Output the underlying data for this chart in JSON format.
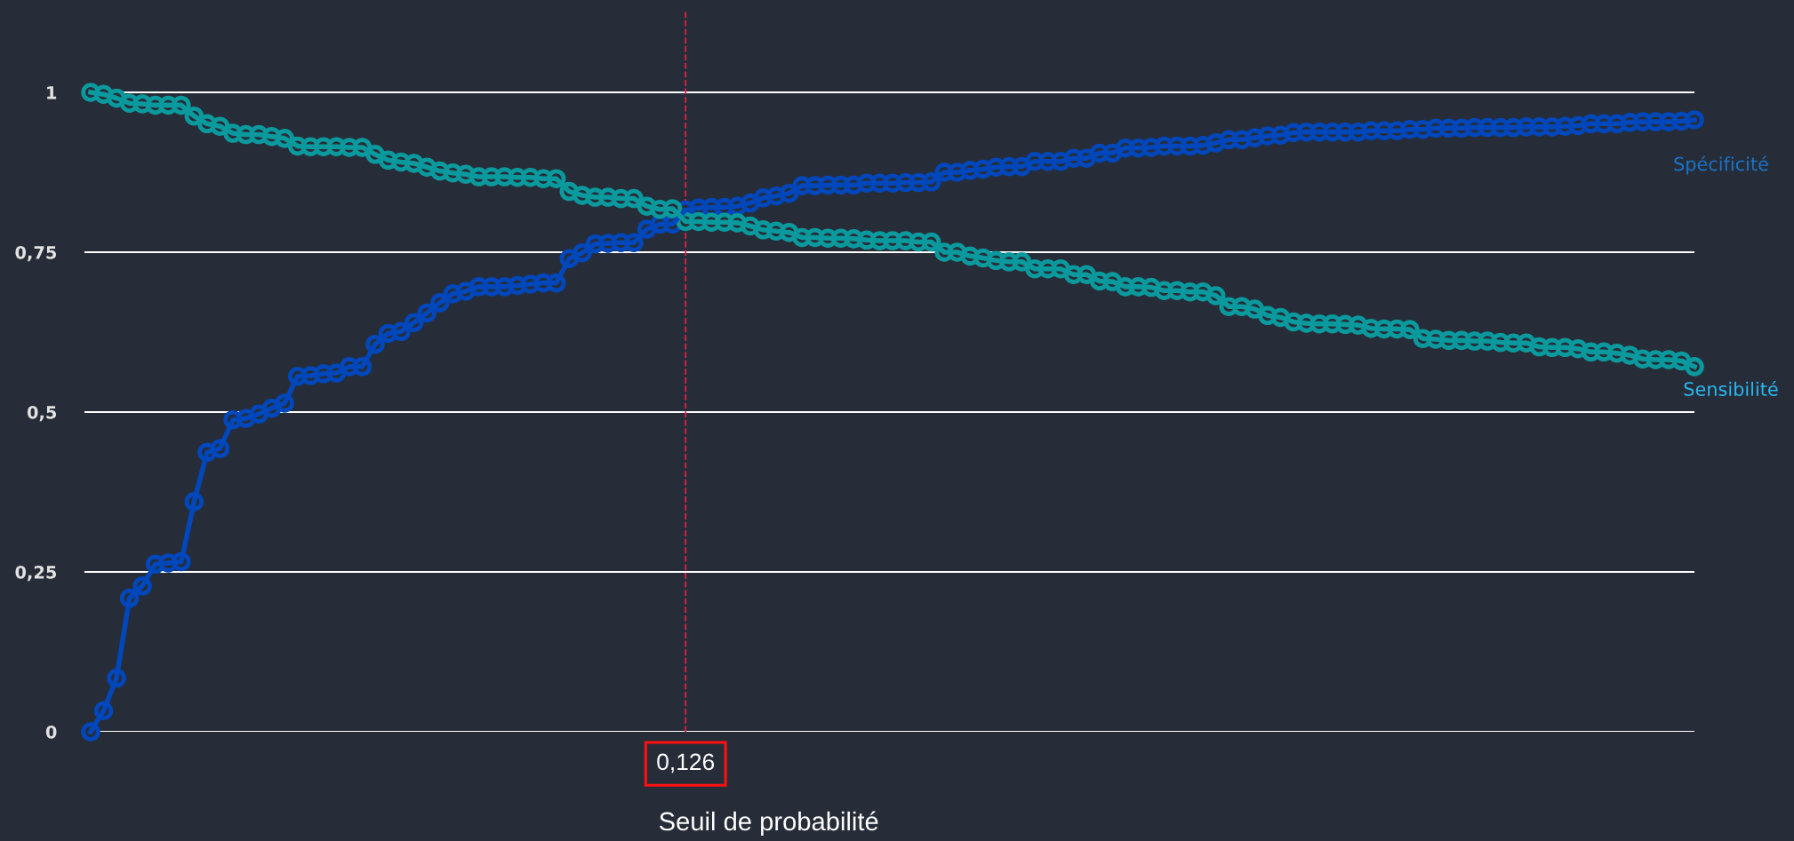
{
  "chart_data": {
    "type": "line",
    "xlabel": "Seuil de probabilité",
    "categories": [
      null,
      null,
      null,
      null,
      null,
      null,
      null,
      null,
      null,
      null,
      null,
      null,
      null,
      null,
      null,
      null,
      null,
      null,
      null,
      null,
      null,
      null,
      null,
      null,
      null,
      null,
      null,
      null,
      null,
      null,
      null,
      null,
      null,
      null,
      null,
      null,
      null,
      null,
      null,
      null,
      null,
      null,
      null,
      null,
      null,
      null,
      null,
      null,
      null,
      null,
      null,
      null,
      null,
      null,
      null,
      null,
      null,
      null,
      null,
      null,
      null,
      null,
      null,
      null,
      null,
      null,
      null,
      null,
      null,
      null,
      null,
      null,
      null,
      null,
      null,
      null,
      null,
      null,
      null,
      null,
      null,
      null,
      null,
      null,
      null,
      null,
      null,
      null,
      null,
      null,
      null,
      null,
      null,
      null,
      null,
      null,
      null,
      null,
      null,
      null,
      null,
      null,
      null,
      null,
      null,
      null,
      null,
      null,
      null,
      null,
      null,
      null,
      null,
      null,
      null,
      null,
      null,
      null,
      null,
      null,
      null,
      null,
      null,
      null,
      null
    ],
    "series": [
      {
        "name": "Spécificité",
        "color": "#0047bb",
        "values": [
          0,
          0.033,
          0.084,
          0.209,
          0.228,
          0.262,
          0.264,
          0.266,
          0.36,
          0.437,
          0.443,
          0.488,
          0.49,
          0.497,
          0.506,
          0.514,
          0.556,
          0.557,
          0.56,
          0.561,
          0.571,
          0.571,
          0.606,
          0.623,
          0.626,
          0.64,
          0.655,
          0.671,
          0.685,
          0.689,
          0.696,
          0.696,
          0.696,
          0.698,
          0.7,
          0.702,
          0.702,
          0.74,
          0.749,
          0.763,
          0.764,
          0.765,
          0.765,
          0.786,
          0.794,
          0.794,
          0.816,
          0.819,
          0.82,
          0.82,
          0.822,
          0.827,
          0.835,
          0.838,
          0.842,
          0.854,
          0.854,
          0.855,
          0.855,
          0.855,
          0.858,
          0.858,
          0.858,
          0.859,
          0.859,
          0.86,
          0.875,
          0.875,
          0.878,
          0.88,
          0.883,
          0.884,
          0.884,
          0.892,
          0.892,
          0.892,
          0.897,
          0.897,
          0.905,
          0.905,
          0.913,
          0.913,
          0.914,
          0.916,
          0.916,
          0.916,
          0.917,
          0.921,
          0.926,
          0.926,
          0.929,
          0.932,
          0.933,
          0.937,
          0.938,
          0.938,
          0.938,
          0.938,
          0.938,
          0.94,
          0.94,
          0.94,
          0.942,
          0.942,
          0.944,
          0.944,
          0.944,
          0.945,
          0.945,
          0.945,
          0.945,
          0.946,
          0.946,
          0.946,
          0.947,
          0.948,
          0.951,
          0.951,
          0.951,
          0.953,
          0.954,
          0.954,
          0.954,
          0.955,
          0.957
        ]
      },
      {
        "name": "Sensibilité",
        "color": "#0a9a9e",
        "values": [
          1,
          0.997,
          0.991,
          0.983,
          0.982,
          0.98,
          0.98,
          0.98,
          0.963,
          0.951,
          0.947,
          0.936,
          0.934,
          0.934,
          0.931,
          0.928,
          0.916,
          0.915,
          0.915,
          0.915,
          0.914,
          0.914,
          0.903,
          0.894,
          0.891,
          0.889,
          0.883,
          0.877,
          0.874,
          0.872,
          0.868,
          0.868,
          0.868,
          0.867,
          0.867,
          0.865,
          0.865,
          0.845,
          0.839,
          0.836,
          0.836,
          0.834,
          0.834,
          0.822,
          0.817,
          0.818,
          0.798,
          0.798,
          0.797,
          0.797,
          0.796,
          0.791,
          0.785,
          0.783,
          0.781,
          0.773,
          0.773,
          0.772,
          0.772,
          0.771,
          0.769,
          0.768,
          0.768,
          0.768,
          0.766,
          0.766,
          0.75,
          0.75,
          0.744,
          0.741,
          0.737,
          0.735,
          0.735,
          0.724,
          0.724,
          0.724,
          0.715,
          0.715,
          0.705,
          0.704,
          0.696,
          0.696,
          0.695,
          0.69,
          0.69,
          0.688,
          0.688,
          0.682,
          0.665,
          0.665,
          0.661,
          0.651,
          0.648,
          0.641,
          0.639,
          0.638,
          0.638,
          0.637,
          0.636,
          0.631,
          0.63,
          0.63,
          0.629,
          0.615,
          0.614,
          0.612,
          0.612,
          0.611,
          0.611,
          0.609,
          0.608,
          0.608,
          0.602,
          0.601,
          0.601,
          0.599,
          0.594,
          0.594,
          0.592,
          0.589,
          0.583,
          0.582,
          0.582,
          0.58,
          0.571
        ]
      }
    ],
    "ylim": [
      0,
      1.13
    ],
    "yticks": [
      0,
      {
        "value": 0.25,
        "label": "0,25"
      },
      {
        "value": 0.5,
        "label": "0,5"
      },
      {
        "value": 0.75,
        "label": "0,75"
      },
      1
    ],
    "grid": "y",
    "marker": "circle",
    "line_style": "solid",
    "tick_labels": "y",
    "annotations": [
      "0,126"
    ]
  }
}
